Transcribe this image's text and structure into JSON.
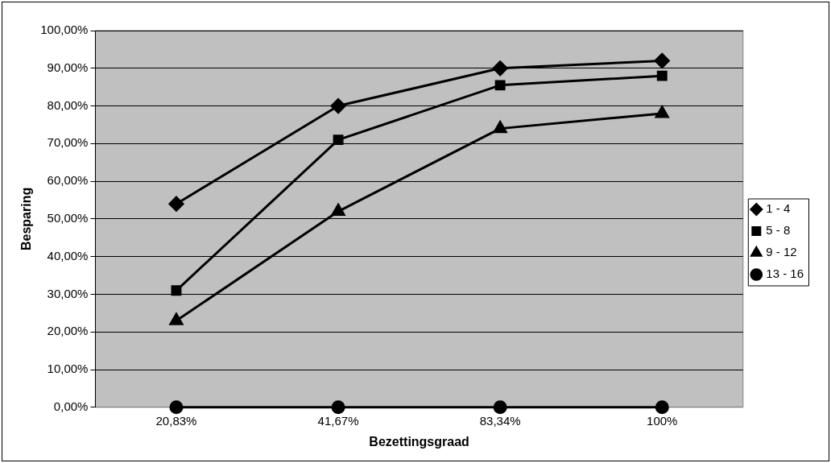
{
  "chart_data": {
    "type": "line",
    "xlabel": "Bezettingsgraad",
    "ylabel": "Besparing",
    "categories": [
      "20,83%",
      "41,67%",
      "83,34%",
      "100%"
    ],
    "series": [
      {
        "name": "1 - 4",
        "color": "#000000",
        "marker": "diamond",
        "values": [
          54,
          80,
          90,
          92
        ]
      },
      {
        "name": "5 - 8",
        "color": "#000000",
        "marker": "square",
        "values": [
          31,
          71,
          85.5,
          88
        ]
      },
      {
        "name": "9 - 12",
        "color": "#000000",
        "marker": "triangle",
        "values": [
          23,
          52,
          74,
          78
        ]
      },
      {
        "name": "13 - 16",
        "color": "#000000",
        "marker": "circle",
        "values": [
          0,
          0,
          0,
          0
        ]
      }
    ],
    "ylim": [
      0,
      100
    ],
    "yticks": [
      {
        "value": 0,
        "label": "0,00%"
      },
      {
        "value": 10,
        "label": "10,00%"
      },
      {
        "value": 20,
        "label": "20,00%"
      },
      {
        "value": 30,
        "label": "30,00%"
      },
      {
        "value": 40,
        "label": "40,00%"
      },
      {
        "value": 50,
        "label": "50,00%"
      },
      {
        "value": 60,
        "label": "60,00%"
      },
      {
        "value": 70,
        "label": "70,00%"
      },
      {
        "value": 80,
        "label": "80,00%"
      },
      {
        "value": 90,
        "label": "90,00%"
      },
      {
        "value": 100,
        "label": "100,00%"
      }
    ],
    "grid": "y",
    "legend": "right",
    "line_style": "solid"
  }
}
